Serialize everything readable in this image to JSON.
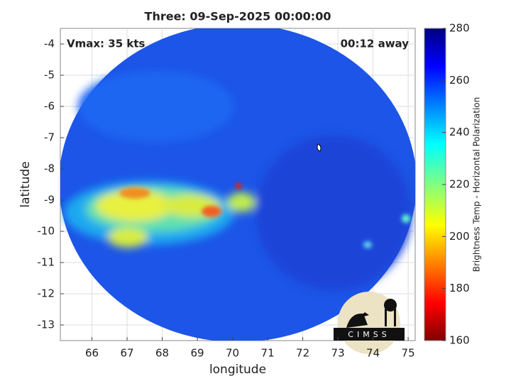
{
  "chart_data": {
    "type": "image",
    "title": "Three: 09-Sep-2025 00:00:00",
    "annotations": [
      "Vmax: 35 kts",
      "00:12 away"
    ],
    "x_label": "longitude",
    "y_label": "latitude",
    "xlim": [
      65.1,
      75.2
    ],
    "ylim": [
      -13.5,
      -3.5
    ],
    "xticks": [
      66,
      67,
      68,
      69,
      70,
      71,
      72,
      73,
      74,
      75
    ],
    "yticks": [
      -4,
      -5,
      -6,
      -7,
      -8,
      -9,
      -10,
      -11,
      -12,
      -13
    ],
    "grid": true,
    "colorbar": {
      "label": "Brightness Temp - Horizontal Polarization",
      "colormap": "jet",
      "lim": [
        160,
        280
      ],
      "ticks": [
        160,
        180,
        200,
        220,
        240,
        260,
        280
      ]
    },
    "logo": "CIMSS"
  }
}
